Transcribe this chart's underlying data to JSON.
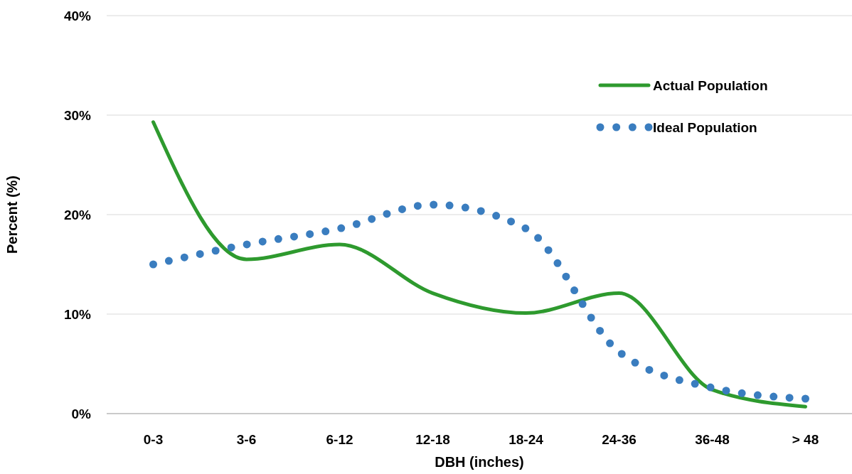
{
  "chart_data": {
    "type": "line",
    "xlabel": "DBH (inches)",
    "ylabel": "Percent (%)",
    "categories": [
      "0-3",
      "3-6",
      "6-12",
      "12-18",
      "18-24",
      "24-36",
      "36-48",
      "> 48"
    ],
    "series": [
      {
        "name": "Actual Population",
        "color": "#2e9a2e",
        "line_style": "solid",
        "values": [
          29.3,
          15.5,
          17,
          12.1,
          10.1,
          12.1,
          2.4,
          0.7
        ]
      },
      {
        "name": "Ideal Population",
        "color": "#3a7dbf",
        "line_style": "dotted",
        "values": [
          15,
          17,
          18.6,
          21,
          18.6,
          6.2,
          2.6,
          1.5
        ]
      }
    ],
    "ylim": [
      0,
      40
    ],
    "yticks": [
      {
        "value": 0,
        "label": "0%"
      },
      {
        "value": 10,
        "label": "10%"
      },
      {
        "value": 20,
        "label": "20%"
      },
      {
        "value": 30,
        "label": "30%"
      },
      {
        "value": 40,
        "label": "40%"
      }
    ],
    "grid": "y",
    "legend": "top right",
    "marker": "none"
  }
}
